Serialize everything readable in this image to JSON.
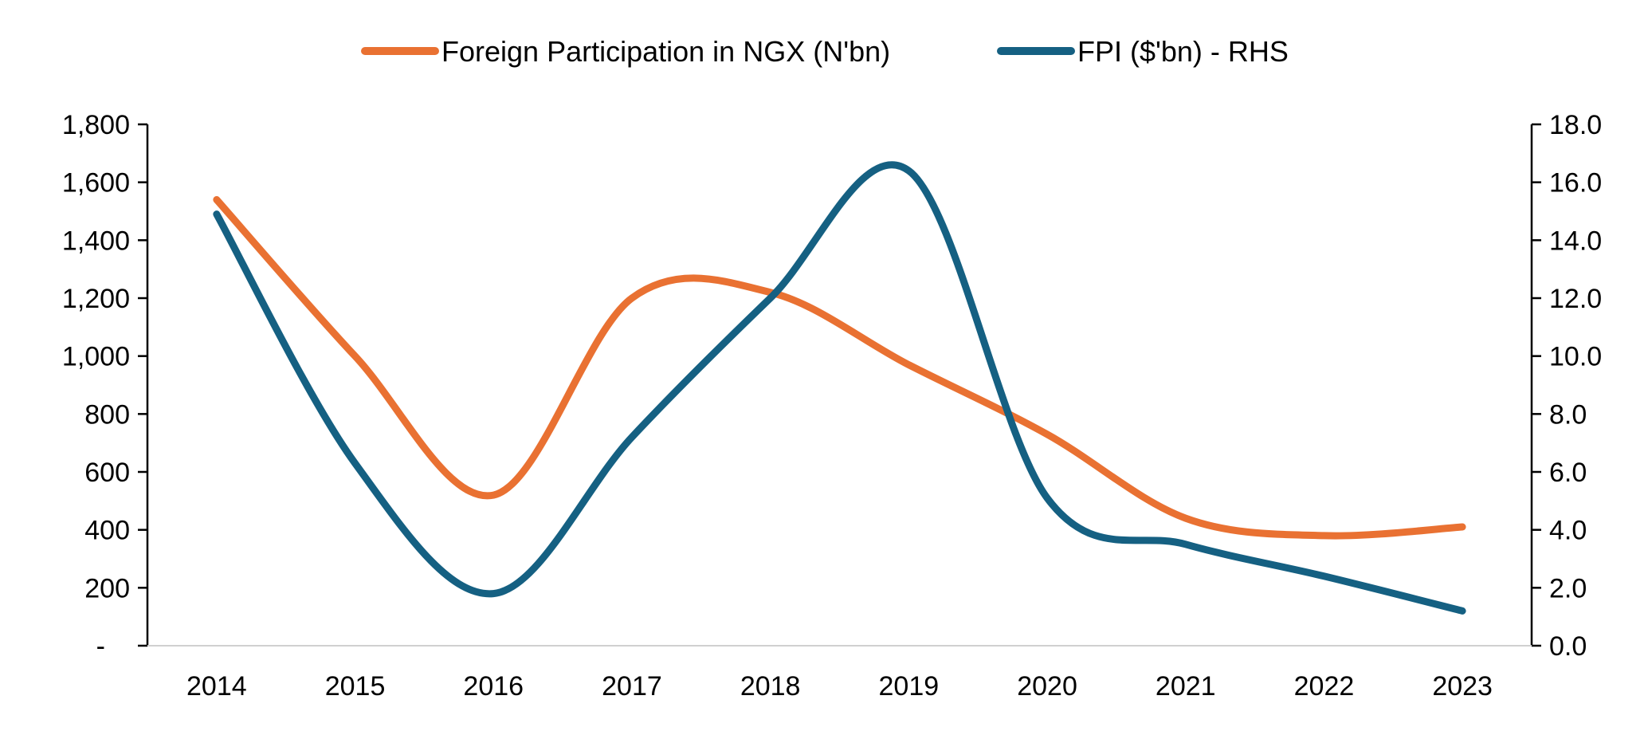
{
  "chart_data": {
    "type": "line",
    "title": "",
    "categories": [
      "2014",
      "2015",
      "2016",
      "2017",
      "2018",
      "2019",
      "2020",
      "2021",
      "2022",
      "2023"
    ],
    "series": [
      {
        "name": "Foreign Participation in NGX (N'bn)",
        "axis": "left",
        "color": "#E97132",
        "values": [
          1540,
          1000,
          520,
          1200,
          1220,
          970,
          730,
          440,
          380,
          410
        ]
      },
      {
        "name": "FPI ($'bn) - RHS",
        "axis": "right",
        "color": "#156082",
        "values": [
          14.9,
          6.3,
          1.8,
          7.2,
          12.0,
          16.4,
          5.1,
          3.5,
          2.4,
          1.2
        ]
      }
    ],
    "y_left": {
      "min": 0,
      "max": 1800,
      "ticks": [
        0,
        200,
        400,
        600,
        800,
        1000,
        1200,
        1400,
        1600,
        1800
      ],
      "tick_labels": [
        "-",
        "200",
        "400",
        "600",
        "800",
        "1,000",
        "1,200",
        "1,400",
        "1,600",
        "1,800"
      ]
    },
    "y_right": {
      "min": 0,
      "max": 18,
      "ticks": [
        0,
        2,
        4,
        6,
        8,
        10,
        12,
        14,
        16,
        18
      ],
      "tick_labels": [
        "0.0",
        "2.0",
        "4.0",
        "6.0",
        "8.0",
        "10.0",
        "12.0",
        "14.0",
        "16.0",
        "18.0"
      ]
    },
    "xlabel": "",
    "ylabel": "",
    "grid": false,
    "legend_position": "top-center"
  }
}
